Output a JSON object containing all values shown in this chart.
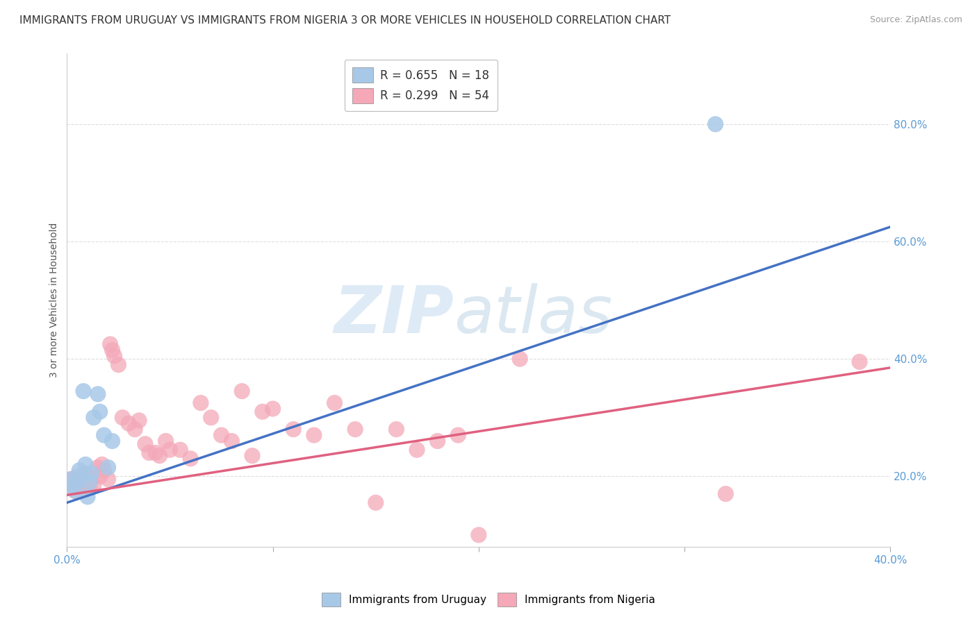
{
  "title": "IMMIGRANTS FROM URUGUAY VS IMMIGRANTS FROM NIGERIA 3 OR MORE VEHICLES IN HOUSEHOLD CORRELATION CHART",
  "source": "Source: ZipAtlas.com",
  "ylabel": "3 or more Vehicles in Household",
  "xlim": [
    0.0,
    0.4
  ],
  "ylim": [
    0.08,
    0.92
  ],
  "ytick_labels": [
    "20.0%",
    "40.0%",
    "60.0%",
    "80.0%"
  ],
  "ytick_values": [
    0.2,
    0.4,
    0.6,
    0.8
  ],
  "xtick_labels": [
    "0.0%",
    "",
    "",
    "",
    "40.0%"
  ],
  "xtick_values": [
    0.0,
    0.1,
    0.2,
    0.3,
    0.4
  ],
  "legend_entries": [
    {
      "label_r": "R = 0.655",
      "label_n": "N = 18",
      "color": "#a8c8e8"
    },
    {
      "label_r": "R = 0.299",
      "label_n": "N = 54",
      "color": "#f4a8b8"
    }
  ],
  "series_uruguay": {
    "color_fill": "#a8c8e8",
    "color_line": "#4472c4",
    "scatter_x": [
      0.002,
      0.003,
      0.004,
      0.005,
      0.006,
      0.007,
      0.008,
      0.009,
      0.01,
      0.011,
      0.012,
      0.013,
      0.015,
      0.016,
      0.018,
      0.02,
      0.022,
      0.315
    ],
    "scatter_y": [
      0.195,
      0.185,
      0.175,
      0.19,
      0.21,
      0.2,
      0.345,
      0.22,
      0.165,
      0.19,
      0.205,
      0.3,
      0.34,
      0.31,
      0.27,
      0.215,
      0.26,
      0.8
    ],
    "line_x": [
      0.0,
      0.4
    ],
    "line_y": [
      0.155,
      0.625
    ]
  },
  "series_nigeria": {
    "color_fill": "#f4a8b8",
    "color_line": "#e06080",
    "scatter_x": [
      0.002,
      0.003,
      0.004,
      0.005,
      0.006,
      0.007,
      0.008,
      0.009,
      0.01,
      0.011,
      0.012,
      0.013,
      0.015,
      0.016,
      0.017,
      0.018,
      0.02,
      0.021,
      0.022,
      0.023,
      0.025,
      0.027,
      0.03,
      0.033,
      0.035,
      0.038,
      0.04,
      0.043,
      0.045,
      0.048,
      0.05,
      0.055,
      0.06,
      0.065,
      0.07,
      0.075,
      0.08,
      0.085,
      0.09,
      0.095,
      0.1,
      0.11,
      0.12,
      0.13,
      0.14,
      0.15,
      0.16,
      0.17,
      0.18,
      0.19,
      0.2,
      0.22,
      0.32,
      0.385
    ],
    "scatter_y": [
      0.195,
      0.185,
      0.175,
      0.2,
      0.19,
      0.18,
      0.195,
      0.205,
      0.19,
      0.18,
      0.195,
      0.185,
      0.215,
      0.2,
      0.22,
      0.21,
      0.195,
      0.425,
      0.415,
      0.405,
      0.39,
      0.3,
      0.29,
      0.28,
      0.295,
      0.255,
      0.24,
      0.24,
      0.235,
      0.26,
      0.245,
      0.245,
      0.23,
      0.325,
      0.3,
      0.27,
      0.26,
      0.345,
      0.235,
      0.31,
      0.315,
      0.28,
      0.27,
      0.325,
      0.28,
      0.155,
      0.28,
      0.245,
      0.26,
      0.27,
      0.1,
      0.4,
      0.17,
      0.395
    ],
    "line_x": [
      0.0,
      0.4
    ],
    "line_y": [
      0.168,
      0.385
    ]
  },
  "watermark_zip": "ZIP",
  "watermark_atlas": "atlas",
  "background_color": "#ffffff",
  "grid_color": "#dddddd",
  "title_fontsize": 11,
  "axis_label_fontsize": 10,
  "tick_fontsize": 11,
  "legend_fontsize": 12
}
